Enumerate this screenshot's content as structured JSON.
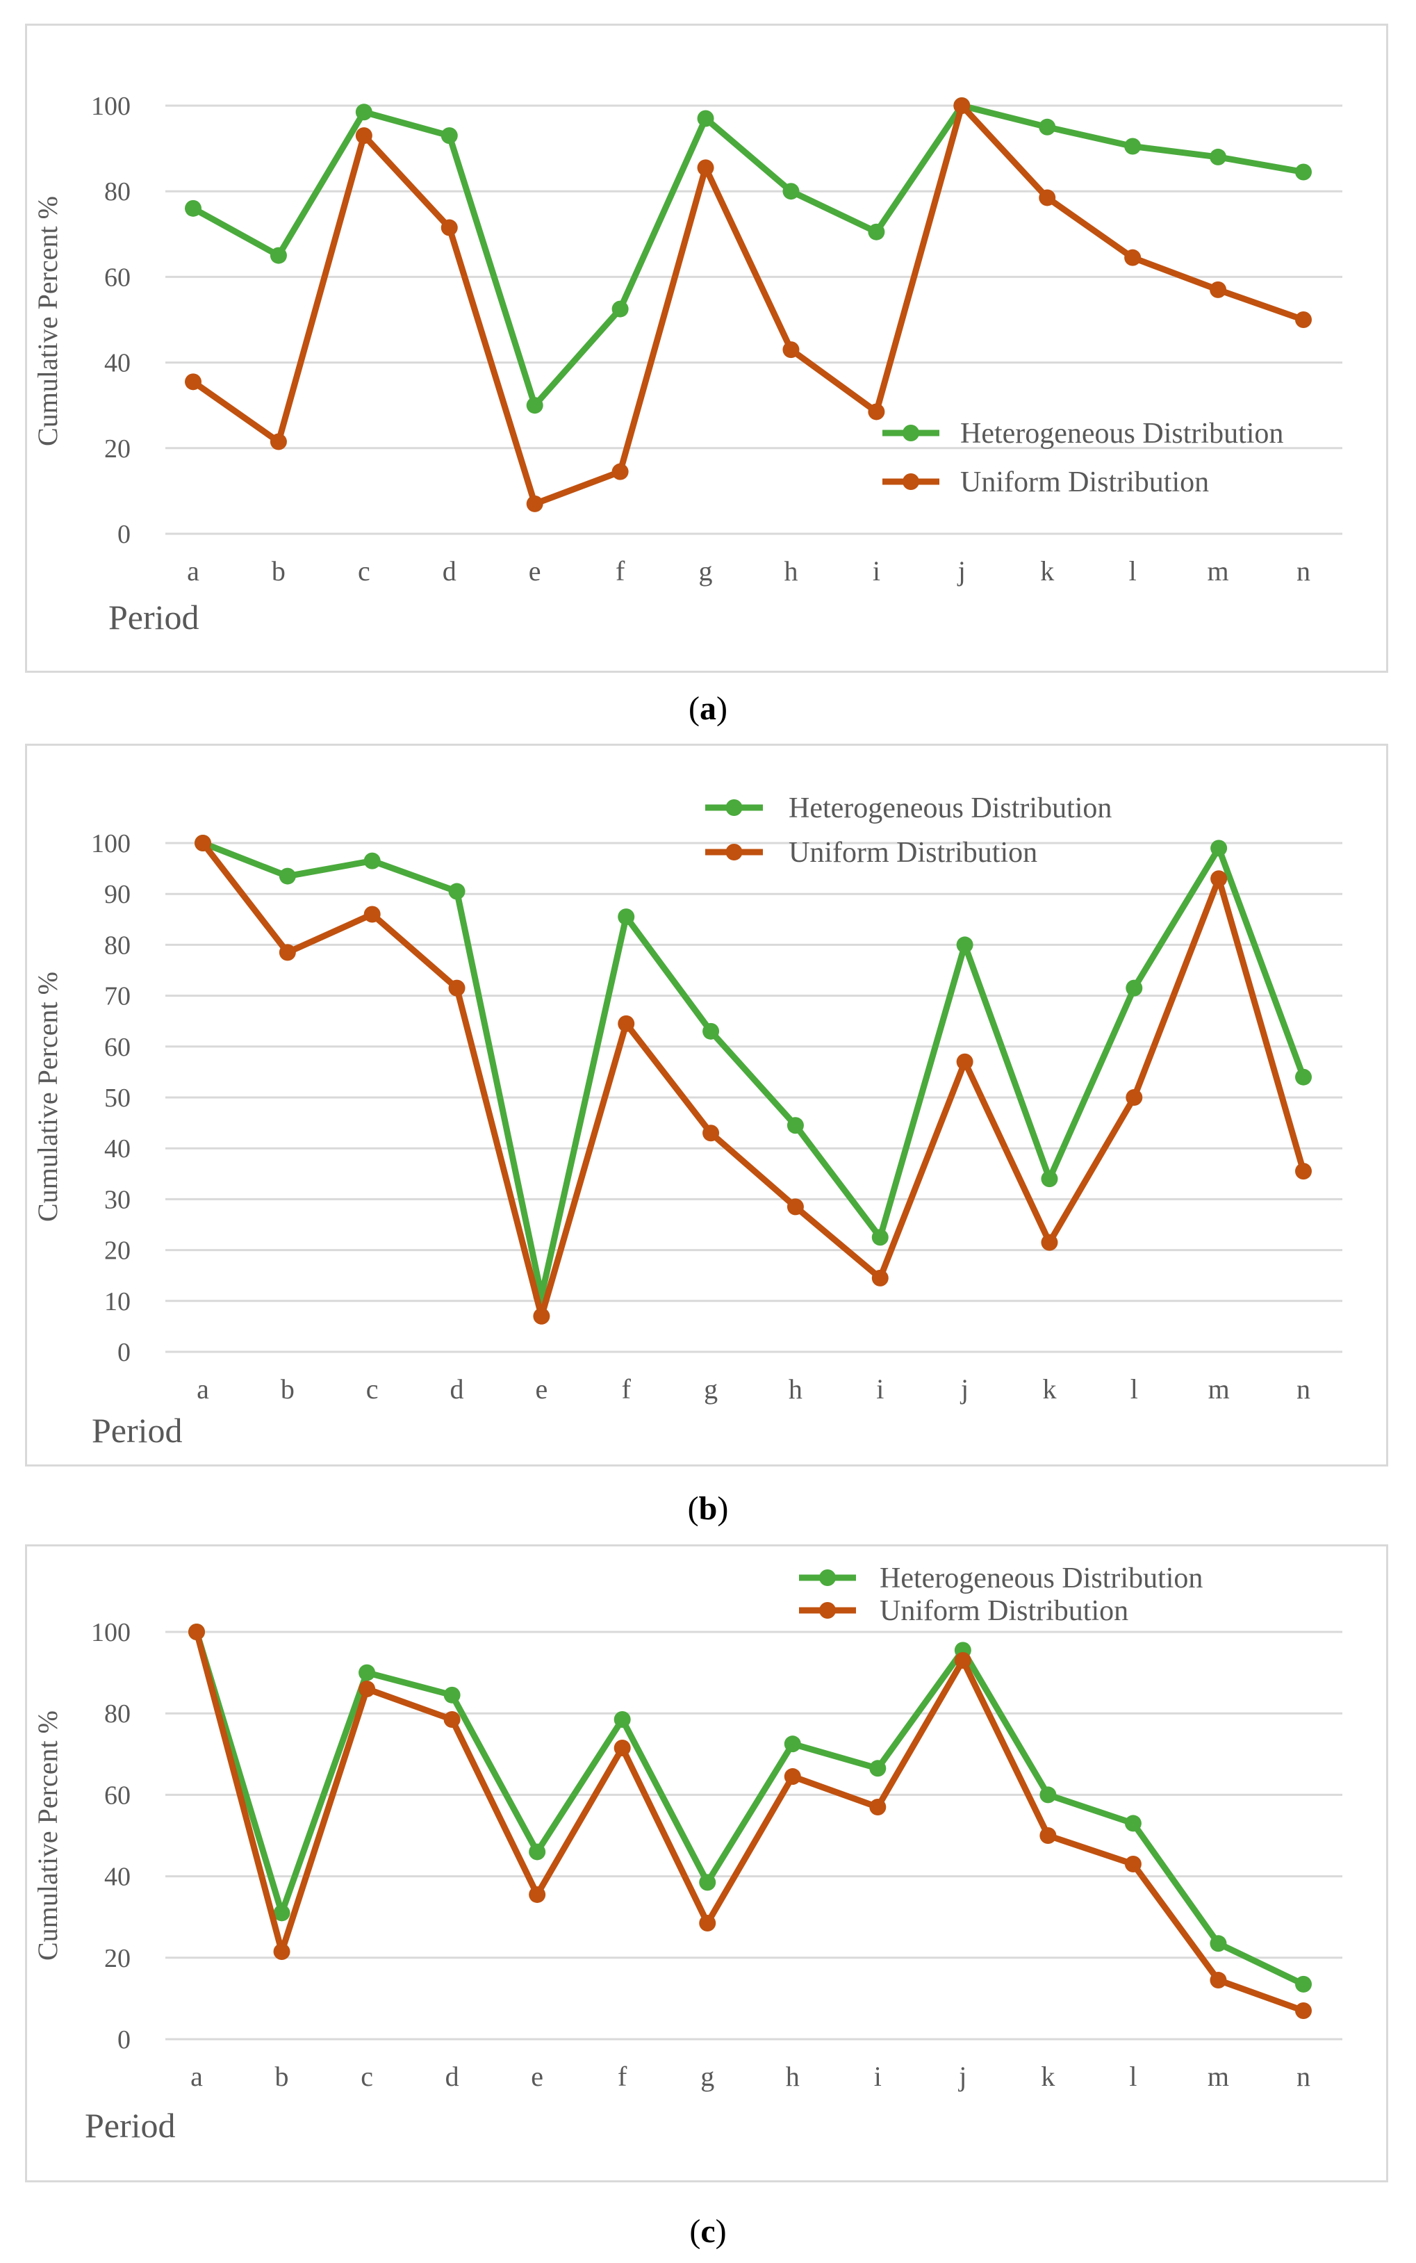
{
  "captions": [
    "a",
    "b",
    "c"
  ],
  "chart_data": [
    {
      "type": "line",
      "panel": "a",
      "categories": [
        "a",
        "b",
        "c",
        "d",
        "e",
        "f",
        "g",
        "h",
        "i",
        "j",
        "k",
        "l",
        "m",
        "n"
      ],
      "series": [
        {
          "name": "Heterogeneous Distribution",
          "color": "#4aaa3c",
          "values": [
            76,
            65,
            98.5,
            93,
            30,
            52.5,
            97,
            80,
            70.5,
            100,
            95,
            90.5,
            88,
            84.5
          ]
        },
        {
          "name": "Uniform Distribution",
          "color": "#c0510f",
          "values": [
            35.5,
            21.5,
            93,
            71.5,
            7,
            14.5,
            85.5,
            43,
            28.5,
            100,
            78.5,
            64.5,
            57,
            50
          ]
        }
      ],
      "title": "",
      "xlabel": "Period",
      "ylabel": "Cumulative Percent  %",
      "ylim": [
        0,
        100
      ],
      "yticks": [
        0,
        20,
        40,
        60,
        80,
        100
      ],
      "legend": "bottom-right"
    },
    {
      "type": "line",
      "panel": "b",
      "categories": [
        "a",
        "b",
        "c",
        "d",
        "e",
        "f",
        "g",
        "h",
        "i",
        "j",
        "k",
        "l",
        "m",
        "n"
      ],
      "series": [
        {
          "name": "Heterogeneous Distribution",
          "color": "#4aaa3c",
          "values": [
            100,
            93.5,
            96.5,
            90.5,
            11,
            85.5,
            63,
            44.5,
            22.5,
            80,
            34,
            71.5,
            99,
            54
          ]
        },
        {
          "name": "Uniform Distribution",
          "color": "#c0510f",
          "values": [
            100,
            78.5,
            86,
            71.5,
            7,
            64.5,
            43,
            28.5,
            14.5,
            57,
            21.5,
            50,
            93,
            35.5
          ]
        }
      ],
      "title": "",
      "xlabel": "Period",
      "ylabel": "Cumulative Percent %",
      "ylim": [
        0,
        100
      ],
      "yticks": [
        0,
        10,
        20,
        30,
        40,
        50,
        60,
        70,
        80,
        90,
        100
      ],
      "legend": "top-right"
    },
    {
      "type": "line",
      "panel": "c",
      "categories": [
        "a",
        "b",
        "c",
        "d",
        "e",
        "f",
        "g",
        "h",
        "i",
        "j",
        "k",
        "l",
        "m",
        "n"
      ],
      "series": [
        {
          "name": "Heterogeneous Distribution",
          "color": "#4aaa3c",
          "values": [
            100,
            31,
            90,
            84.5,
            46,
            78.5,
            38.5,
            72.5,
            66.5,
            95.5,
            60,
            53,
            23.5,
            13.5
          ]
        },
        {
          "name": "Uniform Distribution",
          "color": "#c0510f",
          "values": [
            100,
            21.5,
            86,
            78.5,
            35.5,
            71.5,
            28.5,
            64.5,
            57,
            93,
            50,
            43,
            14.5,
            7
          ]
        }
      ],
      "title": "",
      "xlabel": "Period",
      "ylabel": "Cumulative Percent  %",
      "ylim": [
        0,
        100
      ],
      "yticks": [
        0,
        20,
        40,
        60,
        80,
        100
      ],
      "legend": "top-right"
    }
  ]
}
